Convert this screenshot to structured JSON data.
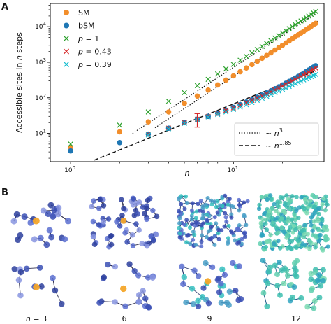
{
  "panels": {
    "a_label": "A",
    "b_label": "B"
  },
  "chart_data": {
    "type": "scatter",
    "x_scale": "log",
    "y_scale": "log",
    "xlim": [
      0.75,
      36
    ],
    "ylim": [
      1.6,
      45000
    ],
    "xlabel": "n",
    "ylabel": "Accessible sites in n steps",
    "x_ticks": [
      {
        "value": 1,
        "base": "10",
        "exp": "0"
      },
      {
        "value": 10,
        "base": "10",
        "exp": "1"
      }
    ],
    "y_ticks": [
      {
        "value": 10,
        "base": "10",
        "exp": "1"
      },
      {
        "value": 100,
        "base": "10",
        "exp": "2"
      },
      {
        "value": 1000,
        "base": "10",
        "exp": "3"
      },
      {
        "value": 10000,
        "base": "10",
        "exp": "4"
      }
    ],
    "grid": false,
    "legend_placement": "upper-left",
    "series": [
      {
        "name": "SM",
        "marker": "circle",
        "color": "#F28E2B",
        "x": [
          1,
          2,
          3,
          4,
          5,
          6,
          7,
          8,
          9,
          10,
          11,
          12,
          13,
          14,
          15,
          16,
          17,
          18,
          19,
          20,
          21,
          22,
          23,
          24,
          25,
          26,
          27,
          28,
          29,
          30,
          31,
          32
        ],
        "y": [
          4,
          11,
          21,
          40,
          70,
          112,
          165,
          230,
          315,
          415,
          540,
          690,
          860,
          1060,
          1290,
          1550,
          1850,
          2200,
          2580,
          3000,
          3480,
          4000,
          4580,
          5200,
          5900,
          6650,
          7450,
          8300,
          9200,
          10200,
          11300,
          12500
        ]
      },
      {
        "name": "bSM",
        "marker": "circle",
        "color": "#1F77B4",
        "x": [
          1,
          2,
          3,
          4,
          5,
          6,
          7,
          8,
          9,
          10,
          11,
          12,
          13,
          14,
          15,
          16,
          17,
          18,
          19,
          20,
          21,
          22,
          23,
          24,
          25,
          26,
          27,
          28,
          29,
          30,
          31,
          32
        ],
        "y": [
          3.2,
          5.5,
          9.5,
          14,
          20,
          25,
          30,
          37,
          45,
          54,
          64,
          76,
          89,
          104,
          120,
          138,
          158,
          180,
          204,
          230,
          258,
          290,
          325,
          362,
          400,
          445,
          495,
          548,
          605,
          665,
          730,
          800
        ]
      },
      {
        "name": "p = 1",
        "marker": "x",
        "color": "#2CA02C",
        "x": [
          1,
          2,
          3,
          4,
          5,
          6,
          7,
          8,
          9,
          10,
          11,
          12,
          13,
          14,
          15,
          16,
          17,
          18,
          19,
          20,
          21,
          22,
          23,
          24,
          25,
          26,
          27,
          28,
          29,
          30,
          31,
          32
        ],
        "y": [
          5,
          17,
          40,
          80,
          140,
          220,
          330,
          470,
          650,
          870,
          1140,
          1460,
          1840,
          2280,
          2790,
          3380,
          4050,
          4800,
          5650,
          6600,
          7650,
          8800,
          10050,
          11400,
          12900,
          14500,
          16200,
          18000,
          20000,
          22100,
          24400,
          26800
        ]
      },
      {
        "name": "p = 0.43",
        "marker": "x",
        "color": "#D62728",
        "x": [
          3,
          4,
          5,
          6,
          7,
          8,
          9,
          10,
          11,
          12,
          13,
          14,
          15,
          16,
          17,
          18,
          19,
          20,
          21,
          22,
          23,
          24,
          25,
          26,
          27,
          28,
          29,
          30,
          31,
          32
        ],
        "y": [
          9.5,
          14,
          20,
          25,
          30,
          36,
          44,
          52,
          62,
          73,
          85,
          98,
          113,
          130,
          148,
          168,
          190,
          214,
          240,
          268,
          298,
          330,
          365,
          402,
          442,
          485,
          530,
          578,
          630,
          685
        ]
      },
      {
        "name": "p = 0.39",
        "marker": "x",
        "color": "#17BECF",
        "x": [
          3,
          4,
          5,
          6,
          7,
          8,
          9,
          10,
          11,
          12,
          13,
          14,
          15,
          16,
          17,
          18,
          19,
          20,
          21,
          22,
          23,
          24,
          25,
          26,
          27,
          28,
          29,
          30,
          31,
          32
        ],
        "y": [
          9,
          13.5,
          19,
          24,
          29,
          34,
          40,
          47,
          55,
          64,
          74,
          85,
          97,
          110,
          124,
          139,
          155,
          172,
          190,
          209,
          229,
          250,
          272,
          295,
          319,
          344,
          370,
          397,
          425,
          454
        ]
      }
    ],
    "error_bar": {
      "x": 6,
      "y": 27,
      "ylow": 15,
      "yhigh": 36,
      "color": "#D62728"
    },
    "fit_lines": [
      {
        "name": "~ n",
        "exp_label": "3",
        "style": "dotted",
        "coef": 0.4,
        "power": 3,
        "xrange": [
          3.3,
          33
        ]
      },
      {
        "name": "~ n",
        "exp_label": "3",
        "style": "dotted",
        "coef": 0.72,
        "power": 3,
        "xrange": [
          2.4,
          33
        ]
      },
      {
        "name": "~ n",
        "exp_label": "1.85",
        "style": "dashed",
        "coef": 0.95,
        "power": 1.85,
        "xrange": [
          1.4,
          32
        ]
      }
    ],
    "legend_fits": [
      {
        "style": "dotted",
        "text": "~ n",
        "sup": "3"
      },
      {
        "style": "dashed",
        "text": "~ n",
        "sup": "1.85"
      }
    ]
  },
  "structures": {
    "captions": [
      "n = 3",
      "6",
      "9",
      "12"
    ]
  }
}
